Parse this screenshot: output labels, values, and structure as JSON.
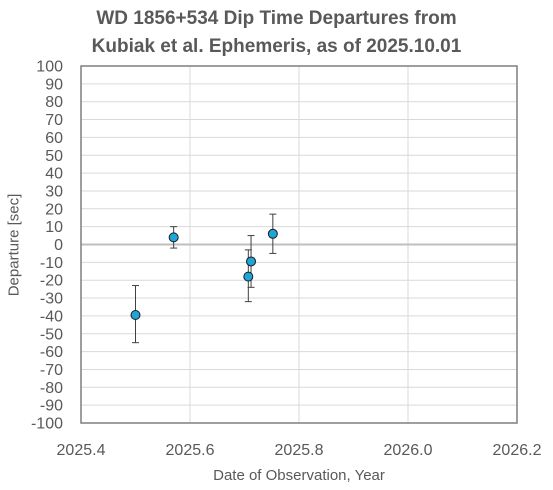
{
  "chart_data": {
    "type": "scatter",
    "title_lines": [
      "WD 1856+534 Dip Time Departures from",
      "Kubiak et al. Ephemeris, as of 2025.10.01"
    ],
    "xlabel": "Date of Observation, Year",
    "ylabel": "Departure [sec]",
    "xlim": [
      2025.4,
      2026.2
    ],
    "ylim": [
      -100,
      100
    ],
    "x_ticks": [
      2025.4,
      2025.6,
      2025.8,
      2026.0,
      2026.2
    ],
    "x_tick_labels": [
      "2025.4",
      "2025.6",
      "2025.8",
      "2026.0",
      "2026.2"
    ],
    "y_ticks": [
      100,
      90,
      80,
      70,
      60,
      50,
      40,
      30,
      20,
      10,
      0,
      -10,
      -20,
      -30,
      -40,
      -50,
      -60,
      -70,
      -80,
      -90,
      -100
    ],
    "y_tick_labels": [
      "100",
      "90",
      "80",
      "70",
      "60",
      "50",
      "40",
      "30",
      "20",
      "10",
      "0",
      "-10",
      "-20",
      "-30",
      "-40",
      "-50",
      "-60",
      "-70",
      "-80",
      "-90",
      "-100"
    ],
    "grid": true,
    "zero_line": true,
    "points": [
      {
        "x": 2025.5,
        "y": -39.5,
        "err_low": -55,
        "err_high": -23
      },
      {
        "x": 2025.57,
        "y": 4,
        "err_low": -2,
        "err_high": 10
      },
      {
        "x": 2025.707,
        "y": -18,
        "err_low": -32,
        "err_high": -3
      },
      {
        "x": 2025.712,
        "y": -9.5,
        "err_low": -24,
        "err_high": 5
      },
      {
        "x": 2025.752,
        "y": 6,
        "err_low": -5,
        "err_high": 17
      }
    ],
    "colors": {
      "marker_fill": "#1fa5d8",
      "marker_edge": "#1a1a1a",
      "grid": "#d9d9d9",
      "frame": "#7f7f7f",
      "zero_line": "#bfbfbf",
      "text": "#595959"
    }
  }
}
